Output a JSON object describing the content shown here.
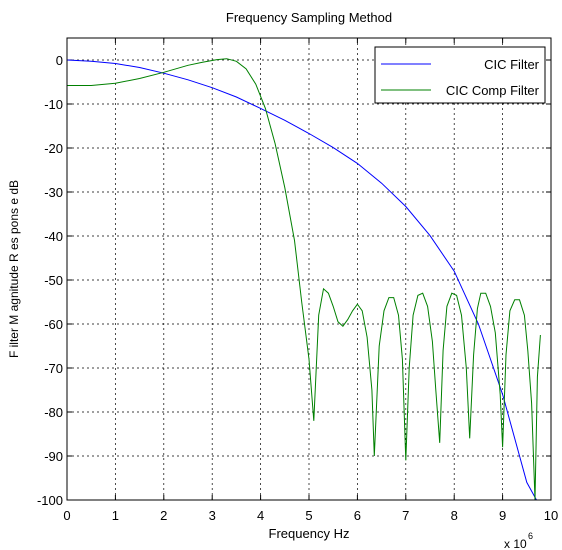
{
  "chart_data": {
    "type": "line",
    "title": "Frequency Sampling Method",
    "xlabel": "Frequency Hz",
    "ylabel": "F ilter   M agnitude   R es pons e   dB",
    "x_multiplier_label": "x 10",
    "x_multiplier_exp": "6",
    "xlim": [
      0,
      10
    ],
    "ylim": [
      -100,
      5
    ],
    "xticks": [
      0,
      1,
      2,
      3,
      4,
      5,
      6,
      7,
      8,
      9,
      10
    ],
    "yticks": [
      0,
      -10,
      -20,
      -30,
      -40,
      -50,
      -60,
      -70,
      -80,
      -90,
      -100
    ],
    "grid": true,
    "legend_position": "top-right",
    "series": [
      {
        "name": "CIC Filter",
        "color": "#0000ff",
        "x": [
          0,
          0.5,
          1.0,
          1.5,
          2.0,
          2.5,
          3.0,
          3.5,
          4.0,
          4.5,
          5.0,
          5.5,
          6.0,
          6.5,
          7.0,
          7.5,
          8.0,
          8.5,
          9.0,
          9.25,
          9.5,
          9.7
        ],
        "y": [
          0,
          -0.3,
          -0.8,
          -1.7,
          -3.0,
          -4.5,
          -6.3,
          -8.4,
          -11.0,
          -13.7,
          -16.7,
          -19.9,
          -23.5,
          -28.0,
          -33.3,
          -39.9,
          -48.0,
          -60.0,
          -76.0,
          -86.0,
          -96.0,
          -100
        ]
      },
      {
        "name": "CIC Comp Filter",
        "color": "#008000",
        "x": [
          0,
          0.5,
          1.0,
          1.5,
          2.0,
          2.5,
          2.8,
          3.1,
          3.3,
          3.5,
          3.7,
          3.9,
          4.1,
          4.3,
          4.5,
          4.7,
          4.85,
          5.0,
          5.1,
          5.2,
          5.3,
          5.4,
          5.5,
          5.6,
          5.7,
          5.8,
          5.9,
          6.0,
          6.1,
          6.2,
          6.3,
          6.35,
          6.45,
          6.55,
          6.65,
          6.75,
          6.85,
          6.93,
          7.0,
          7.07,
          7.15,
          7.25,
          7.35,
          7.45,
          7.55,
          7.62,
          7.7,
          7.77,
          7.85,
          7.95,
          8.05,
          8.15,
          8.25,
          8.32,
          8.4,
          8.48,
          8.55,
          8.65,
          8.75,
          8.85,
          8.95,
          9.0,
          9.07,
          9.15,
          9.25,
          9.35,
          9.45,
          9.52,
          9.6,
          9.67,
          9.72,
          9.78
        ],
        "y": [
          -5.8,
          -5.8,
          -5.3,
          -4.2,
          -2.8,
          -1.2,
          -0.5,
          0.1,
          0.3,
          -0.3,
          -2.0,
          -5.5,
          -11.0,
          -19.0,
          -29.0,
          -41.0,
          -55.0,
          -68.0,
          -82.0,
          -58.0,
          -52.0,
          -53.0,
          -56.0,
          -59.5,
          -60.5,
          -59.0,
          -57.0,
          -55.5,
          -57.0,
          -63.0,
          -75.0,
          -90.0,
          -65.0,
          -57.0,
          -54.0,
          -54.0,
          -58.0,
          -68.0,
          -91.0,
          -70.0,
          -58.0,
          -53.5,
          -53.0,
          -56.0,
          -64.0,
          -75.0,
          -87.0,
          -66.0,
          -56.0,
          -53.0,
          -53.5,
          -58.0,
          -70.0,
          -86.0,
          -67.0,
          -56.5,
          -53.0,
          -53.0,
          -56.0,
          -62.0,
          -76.0,
          -88.0,
          -67.0,
          -57.0,
          -54.5,
          -54.5,
          -58.0,
          -66.0,
          -78.0,
          -100.0,
          -72.0,
          -62.5
        ]
      }
    ]
  }
}
